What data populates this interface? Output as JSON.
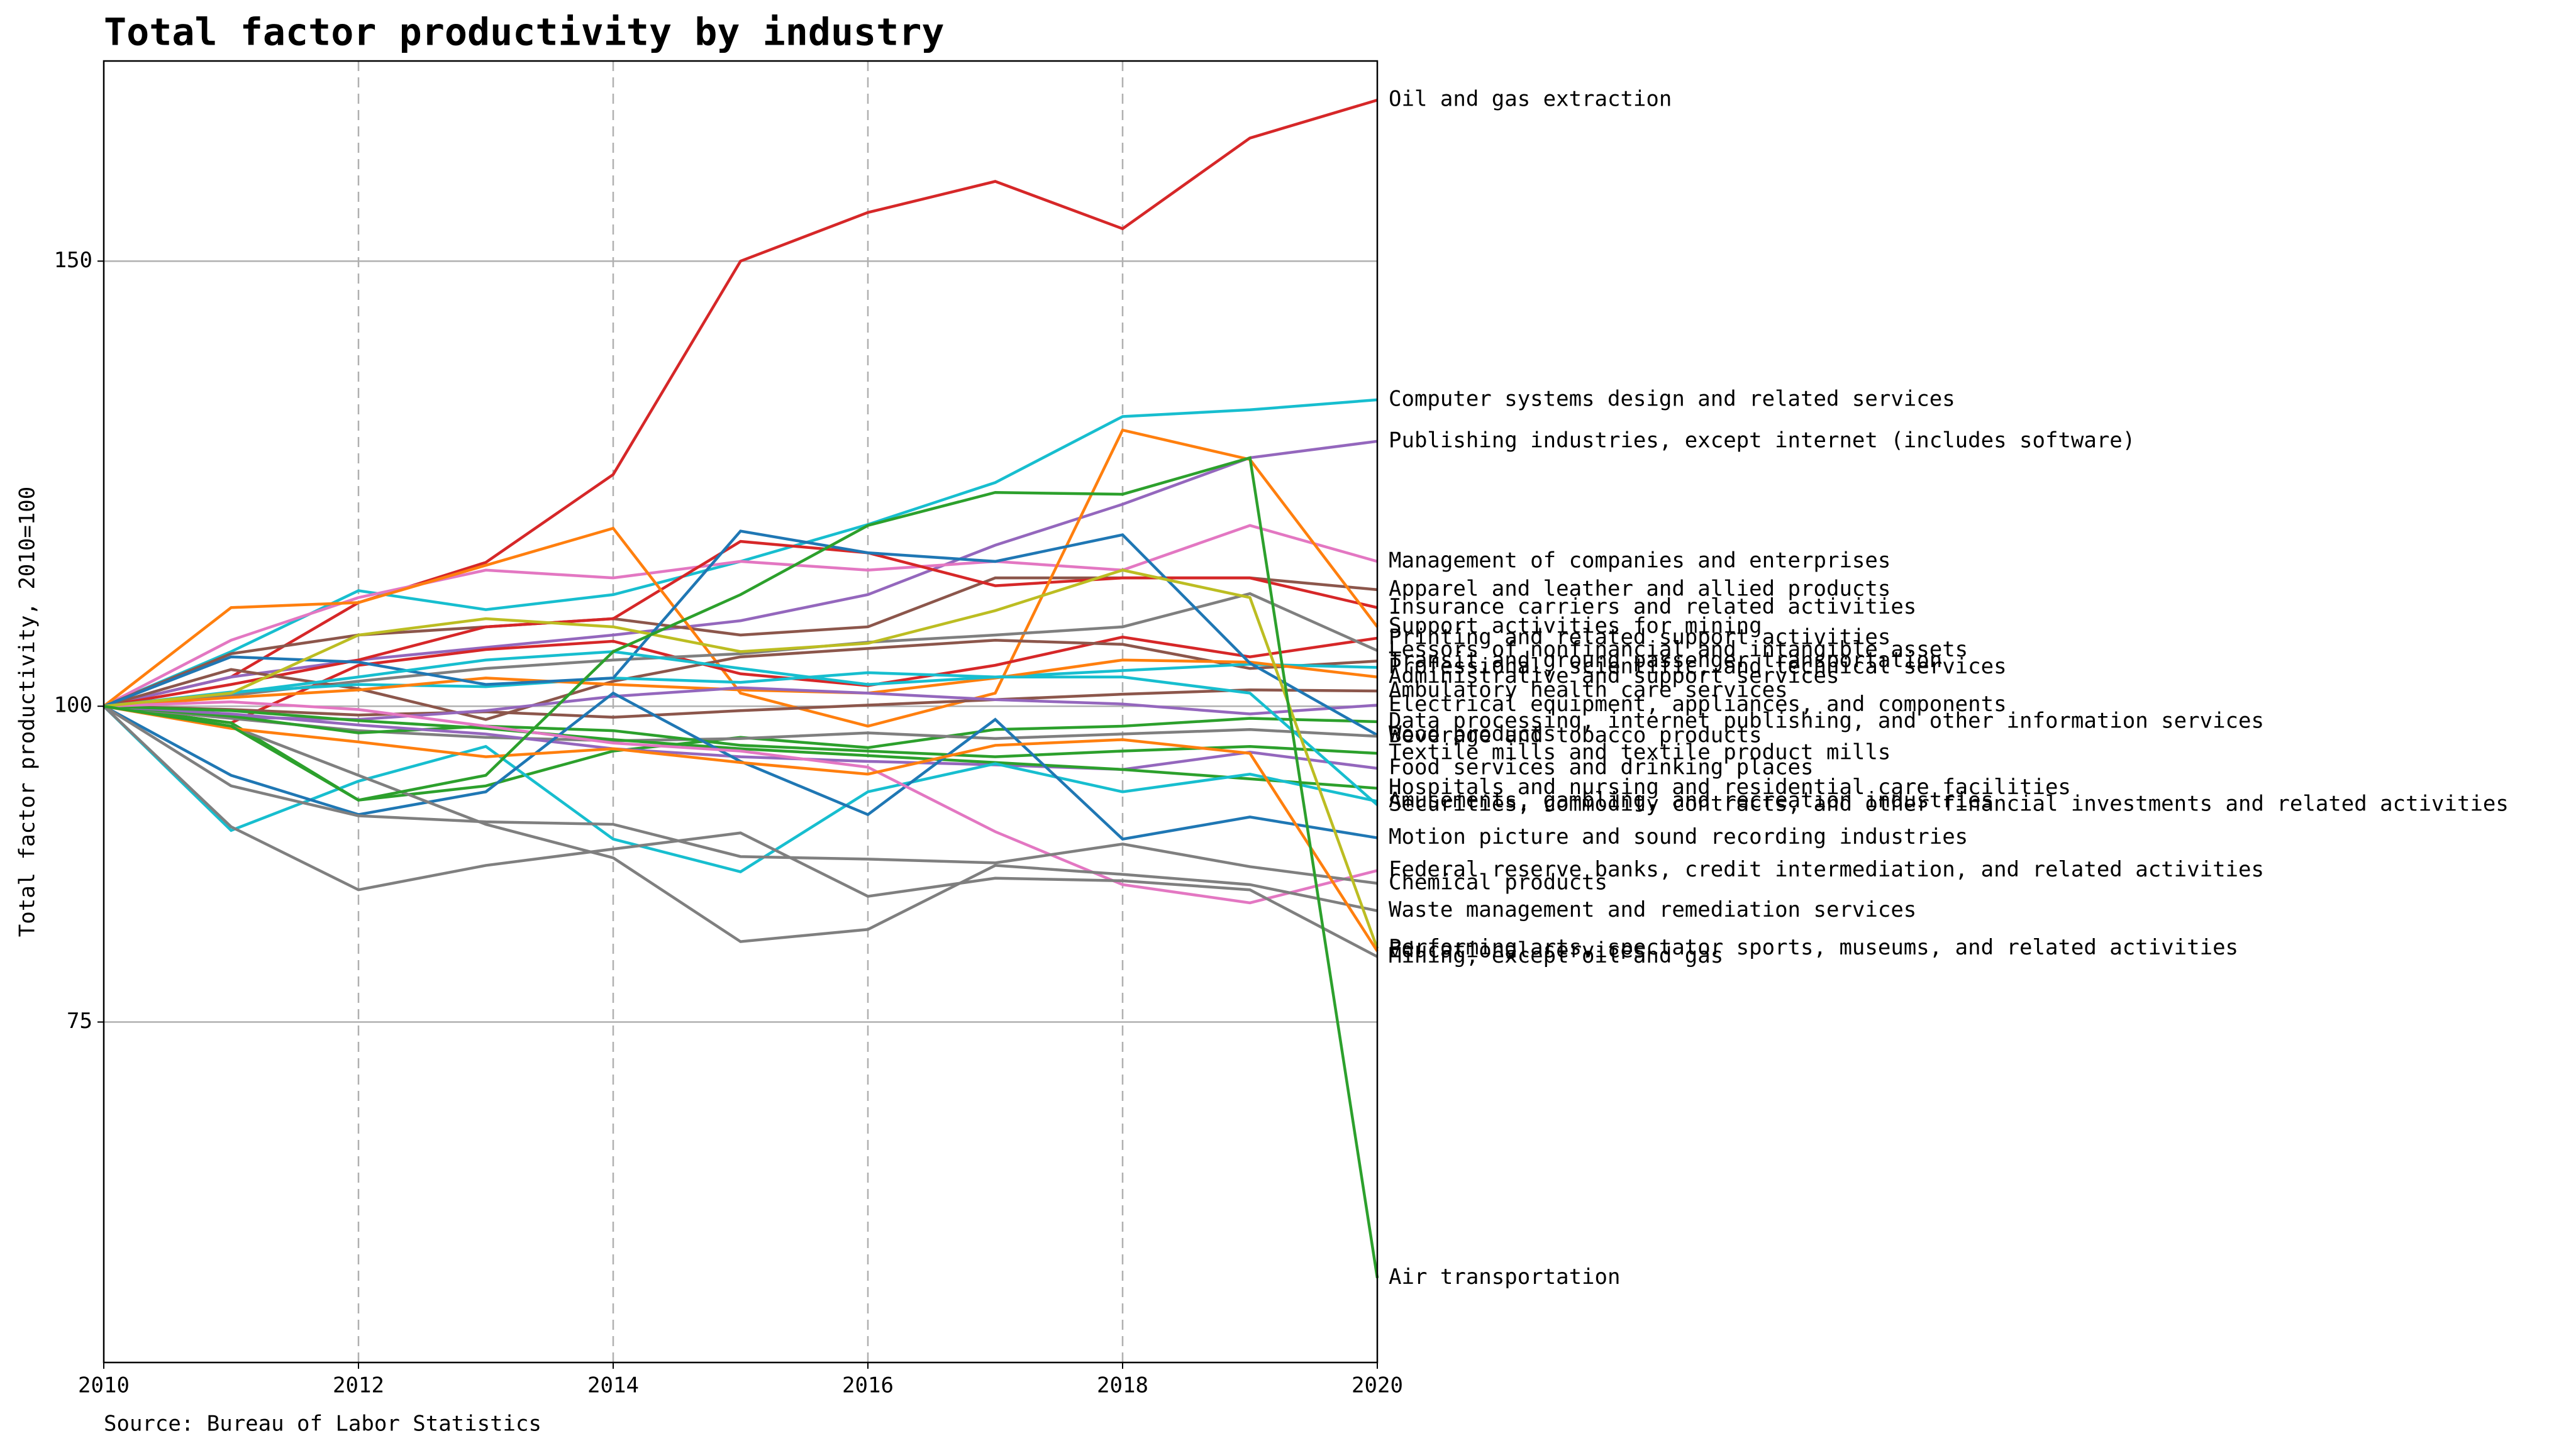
{
  "chart_data": {
    "type": "line",
    "title": "Total factor productivity by industry",
    "y_label": "Total factor productivity, 2010=100",
    "source": "Source: Bureau of Labor Statistics",
    "x": [
      2010,
      2011,
      2012,
      2013,
      2014,
      2015,
      2016,
      2017,
      2018,
      2019,
      2020
    ],
    "xlim": [
      2010,
      2020
    ],
    "xticks": [
      2010,
      2012,
      2014,
      2016,
      2018,
      2020
    ],
    "ylim": [
      55,
      180
    ],
    "yscale": "log",
    "yticks": [
      75,
      100,
      150
    ],
    "grid": true,
    "xgrid": "dashed",
    "series": [
      {
        "name": "Oil and gas extraction",
        "color": "#d62728",
        "values": [
          100,
          102.7,
          109.9,
          114.0,
          123.5,
          150.0,
          156.8,
          161.3,
          154.5,
          167.8,
          173.7
        ]
      },
      {
        "name": "Computer systems design and related services",
        "color": "#17becf",
        "values": [
          100,
          105.1,
          111.1,
          109.2,
          110.7,
          114.1,
          118.0,
          122.6,
          130.2,
          131.0,
          132.2
        ]
      },
      {
        "name": "Publishing industries, except internet (includes software)",
        "color": "#9467bd",
        "values": [
          100,
          102.7,
          104.3,
          105.5,
          106.7,
          108.1,
          110.7,
          115.8,
          120.2,
          125.4,
          127.3
        ]
      },
      {
        "name": "Management of companies and enterprises",
        "color": "#e377c2",
        "values": [
          100,
          106.2,
          110.4,
          113.2,
          112.4,
          114.1,
          113.2,
          114.1,
          113.2,
          117.9,
          114.1
        ]
      },
      {
        "name": "Apparel and leather and allied products",
        "color": "#8c564b",
        "values": [
          100,
          104.9,
          106.7,
          107.5,
          108.3,
          106.7,
          107.5,
          112.4,
          112.4,
          112.4,
          111.2
        ]
      },
      {
        "name": "Insurance carriers and related activities",
        "color": "#d62728",
        "values": [
          100,
          102.0,
          104.3,
          107.5,
          108.3,
          116.2,
          115.0,
          111.6,
          112.4,
          112.4,
          109.4
        ]
      },
      {
        "name": "Support activities for mining",
        "color": "#ff7f0e",
        "values": [
          100,
          109.4,
          109.9,
          113.7,
          117.6,
          101.2,
          98.2,
          101.2,
          128.6,
          125.2,
          107.5
        ]
      },
      {
        "name": "Printing and related support activities",
        "color": "#d62728",
        "values": [
          100,
          98.5,
          103.8,
          105.3,
          106.1,
          103.0,
          101.9,
          103.8,
          106.5,
          104.6,
          106.4
        ]
      },
      {
        "name": "Lessors of nonfinancial and intangible assets",
        "color": "#7f7f7f",
        "values": [
          100,
          101.0,
          102.3,
          103.5,
          104.3,
          104.9,
          106.0,
          106.7,
          107.5,
          110.8,
          105.2
        ]
      },
      {
        "name": "Transit and ground passenger transportation",
        "color": "#8c564b",
        "values": [
          100,
          103.4,
          101.6,
          98.8,
          102.3,
          104.6,
          105.4,
          106.2,
          105.8,
          103.5,
          104.2
        ]
      },
      {
        "name": "Professional, scientific, and technical services",
        "color": "#17becf",
        "values": [
          100,
          101.3,
          102.0,
          101.8,
          102.6,
          102.2,
          103.1,
          102.7,
          103.3,
          103.9,
          103.6
        ]
      },
      {
        "name": "Administrative and support services",
        "color": "#ff7f0e",
        "values": [
          100,
          100.8,
          101.5,
          102.6,
          102.0,
          101.5,
          101.2,
          102.6,
          104.3,
          104.1,
          102.7
        ]
      },
      {
        "name": "Ambulatory health care services",
        "color": "#8c564b",
        "values": [
          100,
          99.7,
          99.2,
          99.5,
          99.0,
          99.6,
          100.1,
          100.6,
          101.1,
          101.5,
          101.4
        ]
      },
      {
        "name": "Electrical equipment, appliances, and components",
        "color": "#9467bd",
        "values": [
          100,
          99.0,
          98.8,
          99.6,
          100.9,
          101.7,
          101.2,
          100.6,
          100.2,
          99.3,
          100.1
        ]
      },
      {
        "name": "Data processing, internet publishing, and other information services",
        "color": "#2ca02c",
        "values": [
          100,
          98.5,
          91.8,
          93.0,
          96.0,
          97.2,
          96.3,
          97.9,
          98.2,
          98.9,
          98.6
        ]
      },
      {
        "name": "Wood products",
        "color": "#1f77b4",
        "values": [
          100,
          104.6,
          104.1,
          102.0,
          102.6,
          117.3,
          115.0,
          114.1,
          116.9,
          104.0,
          97.4
        ]
      },
      {
        "name": "Beverage and tobacco products",
        "color": "#7f7f7f",
        "values": [
          100,
          98.9,
          97.8,
          97.2,
          96.9,
          97.1,
          97.6,
          97.1,
          97.5,
          97.9,
          97.3
        ]
      },
      {
        "name": "Textile mills and textile product mills",
        "color": "#2ca02c",
        "values": [
          100,
          99.1,
          97.6,
          98.2,
          97.8,
          96.5,
          96.0,
          95.5,
          96.0,
          96.4,
          95.8
        ]
      },
      {
        "name": "Food services and drinking places",
        "color": "#9467bd",
        "values": [
          100,
          99.3,
          98.3,
          97.5,
          96.2,
          95.5,
          95.1,
          94.8,
          94.4,
          95.9,
          94.5
        ]
      },
      {
        "name": "Hospitals and nursing and residential care facilities",
        "color": "#2ca02c",
        "values": [
          100,
          99.6,
          98.7,
          98.0,
          97.0,
          96.2,
          95.6,
          95.0,
          94.4,
          93.6,
          92.8
        ]
      },
      {
        "name": "Amusements, gambling, and recreation industries",
        "color": "#17becf",
        "values": [
          100,
          89.3,
          93.4,
          96.4,
          88.6,
          86.0,
          92.5,
          94.9,
          92.5,
          94.0,
          91.7
        ]
      },
      {
        "name": "Securities, commodity contracts, and other financial investments and related activities",
        "color": "#17becf",
        "values": [
          100,
          101.2,
          102.7,
          104.3,
          105.1,
          103.5,
          102.0,
          102.7,
          102.7,
          101.2,
          91.4
        ]
      },
      {
        "name": "Motion picture and sound recording industries",
        "color": "#1f77b4",
        "values": [
          100,
          93.9,
          90.6,
          92.5,
          101.2,
          95.1,
          90.6,
          98.8,
          88.6,
          90.4,
          88.7
        ]
      },
      {
        "name": "Federal reserve banks, credit intermediation, and related activities",
        "color": "#e377c2",
        "values": [
          100,
          100.4,
          99.7,
          98.2,
          96.7,
          96.0,
          94.6,
          89.2,
          85.0,
          83.6,
          86.1
        ]
      },
      {
        "name": "Chemical products",
        "color": "#7f7f7f",
        "values": [
          100,
          93.0,
          90.5,
          90.0,
          89.8,
          87.2,
          87.0,
          86.7,
          88.2,
          86.4,
          85.1
        ]
      },
      {
        "name": "Waste management and remediation services",
        "color": "#7f7f7f",
        "values": [
          100,
          98.2,
          93.9,
          89.8,
          87.1,
          80.7,
          81.6,
          86.5,
          85.8,
          85.0,
          83.0
        ]
      },
      {
        "name": "Performing arts, spectator sports, museums, and related activities",
        "color": "#bcbd22",
        "values": [
          100,
          101.2,
          106.7,
          108.3,
          107.5,
          105.1,
          105.9,
          109.1,
          113.2,
          110.4,
          80.2
        ]
      },
      {
        "name": "Educational services",
        "color": "#ff7f0e",
        "values": [
          100,
          98.0,
          96.8,
          95.5,
          96.2,
          95.0,
          94.0,
          96.5,
          97.0,
          95.8,
          80.0
        ]
      },
      {
        "name": "Mining, except oil and gas",
        "color": "#7f7f7f",
        "values": [
          100,
          89.6,
          84.6,
          86.5,
          87.8,
          89.1,
          84.1,
          85.5,
          85.3,
          84.6,
          79.6
        ]
      },
      {
        "name": "Air transportation",
        "color": "#2ca02c",
        "values": [
          100,
          98.2,
          91.8,
          93.9,
          105.1,
          110.7,
          117.9,
          121.5,
          121.3,
          125.4,
          59.4
        ]
      }
    ]
  }
}
